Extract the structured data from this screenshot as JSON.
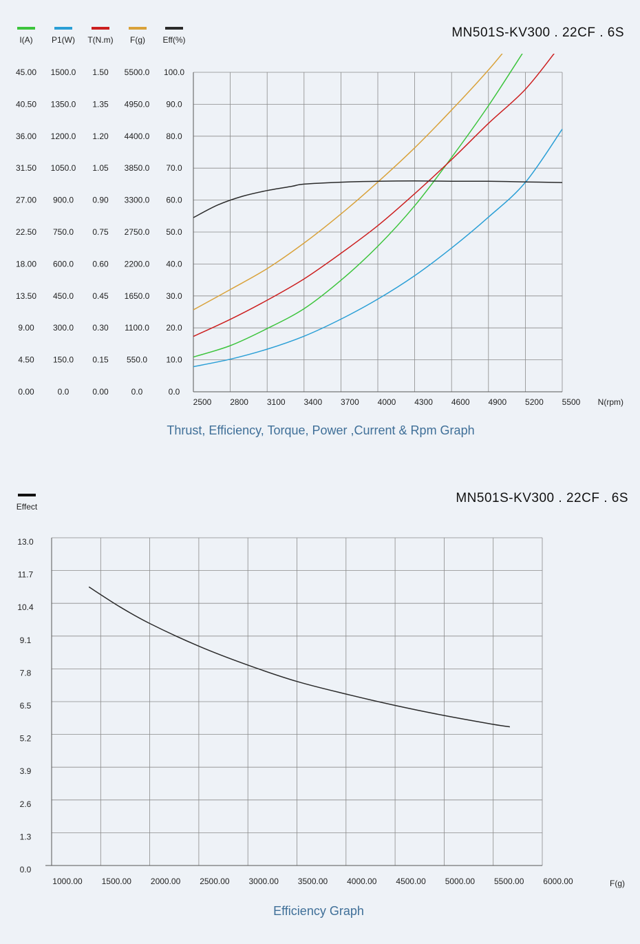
{
  "chart_data": [
    {
      "type": "line",
      "title": "MN501S-KV300 . 22CF . 6S",
      "caption": "Thrust, Efficiency, Torque, Power ,Current & Rpm Graph",
      "xlabel": "N(rpm)",
      "xlim": [
        2500,
        5500
      ],
      "x_ticks": [
        "2500",
        "2800",
        "3100",
        "3400",
        "3700",
        "4000",
        "4300",
        "4600",
        "4900",
        "5200",
        "5500"
      ],
      "y_axes": [
        {
          "name": "I(A)",
          "ticks": [
            "0.00",
            "4.50",
            "9.00",
            "13.50",
            "18.00",
            "22.50",
            "27.00",
            "31.50",
            "36.00",
            "40.50",
            "45.00"
          ]
        },
        {
          "name": "P1(W)",
          "ticks": [
            "0.0",
            "150.0",
            "300.0",
            "450.0",
            "600.0",
            "750.0",
            "900.0",
            "1050.0",
            "1200.0",
            "1350.0",
            "1500.0"
          ]
        },
        {
          "name": "T(N.m)",
          "ticks": [
            "0.00",
            "0.15",
            "0.30",
            "0.45",
            "0.60",
            "0.75",
            "0.90",
            "1.05",
            "1.20",
            "1.35",
            "1.50"
          ]
        },
        {
          "name": "F(g)",
          "ticks": [
            "0.0",
            "550.0",
            "1100.0",
            "1650.0",
            "2200.0",
            "2750.0",
            "3300.0",
            "3850.0",
            "4400.0",
            "4950.0",
            "5500.0"
          ]
        },
        {
          "name": "Eff(%)",
          "ticks": [
            "0.0",
            "10.0",
            "20.0",
            "30.0",
            "40.0",
            "50.0",
            "60.0",
            "70.0",
            "80.0",
            "90.0",
            "100.0"
          ]
        }
      ],
      "series": [
        {
          "name": "I(A)",
          "color": "#3cc43c",
          "unit_max": 45,
          "x": [
            2500,
            2800,
            3100,
            3400,
            3700,
            4000,
            4300,
            4600,
            4900,
            5200
          ],
          "values": [
            4.9,
            6.5,
            8.9,
            11.7,
            15.7,
            20.5,
            26.2,
            33.0,
            40.3,
            48.3
          ]
        },
        {
          "name": "P1(W)",
          "color": "#2a9fd6",
          "unit_max": 1500,
          "x": [
            2500,
            2800,
            3100,
            3400,
            3700,
            4000,
            4300,
            4600,
            4900,
            5200,
            5500
          ],
          "values": [
            118,
            153,
            200,
            261,
            341,
            435,
            545,
            675,
            820,
            983,
            1233
          ]
        },
        {
          "name": "T(N.m)",
          "color": "#cc1f1f",
          "unit_max": 1.5,
          "x": [
            2500,
            2800,
            3100,
            3400,
            3700,
            4000,
            4300,
            4600,
            4900,
            5200,
            5450
          ],
          "values": [
            0.26,
            0.34,
            0.43,
            0.53,
            0.65,
            0.78,
            0.93,
            1.09,
            1.26,
            1.42,
            1.6
          ]
        },
        {
          "name": "F(g)",
          "color": "#d9a23a",
          "unit_max": 5500,
          "x": [
            2500,
            2800,
            3100,
            3400,
            3700,
            4000,
            4300,
            4600,
            4900,
            5080
          ],
          "values": [
            1410,
            1760,
            2120,
            2560,
            3060,
            3610,
            4200,
            4850,
            5540,
            6000
          ]
        },
        {
          "name": "Eff(%)",
          "color": "#2a2a2a",
          "unit_max": 100,
          "x": [
            2500,
            2700,
            2900,
            3100,
            3300,
            3400,
            3700,
            4000,
            4300,
            4600,
            4900,
            5200,
            5500
          ],
          "values": [
            54.5,
            58.5,
            61.2,
            63.0,
            64.3,
            65.0,
            65.6,
            65.9,
            66.0,
            65.9,
            65.9,
            65.7,
            65.5
          ]
        }
      ]
    },
    {
      "type": "line",
      "title": "MN501S-KV300 . 22CF . 6S",
      "caption": "Efficiency Graph",
      "legend": "Effect",
      "xlabel": "F(g)",
      "xlim": [
        1000,
        6000
      ],
      "ylim": [
        0,
        13
      ],
      "x_ticks": [
        "1000.00",
        "1500.00",
        "2000.00",
        "2500.00",
        "3000.00",
        "3500.00",
        "4000.00",
        "4500.00",
        "5000.00",
        "5500.00",
        "6000.00"
      ],
      "y_ticks": [
        "0.0",
        "1.3",
        "2.6",
        "3.9",
        "5.2",
        "6.5",
        "7.8",
        "9.1",
        "10.4",
        "11.7",
        "13.0"
      ],
      "series": [
        {
          "name": "Effect",
          "color": "#2a2a2a",
          "x": [
            1380,
            1700,
            2000,
            2500,
            3000,
            3500,
            4000,
            4500,
            5000,
            5500,
            5670
          ],
          "values": [
            11.05,
            10.25,
            9.6,
            8.7,
            7.95,
            7.3,
            6.8,
            6.35,
            5.95,
            5.6,
            5.5
          ]
        }
      ]
    }
  ]
}
